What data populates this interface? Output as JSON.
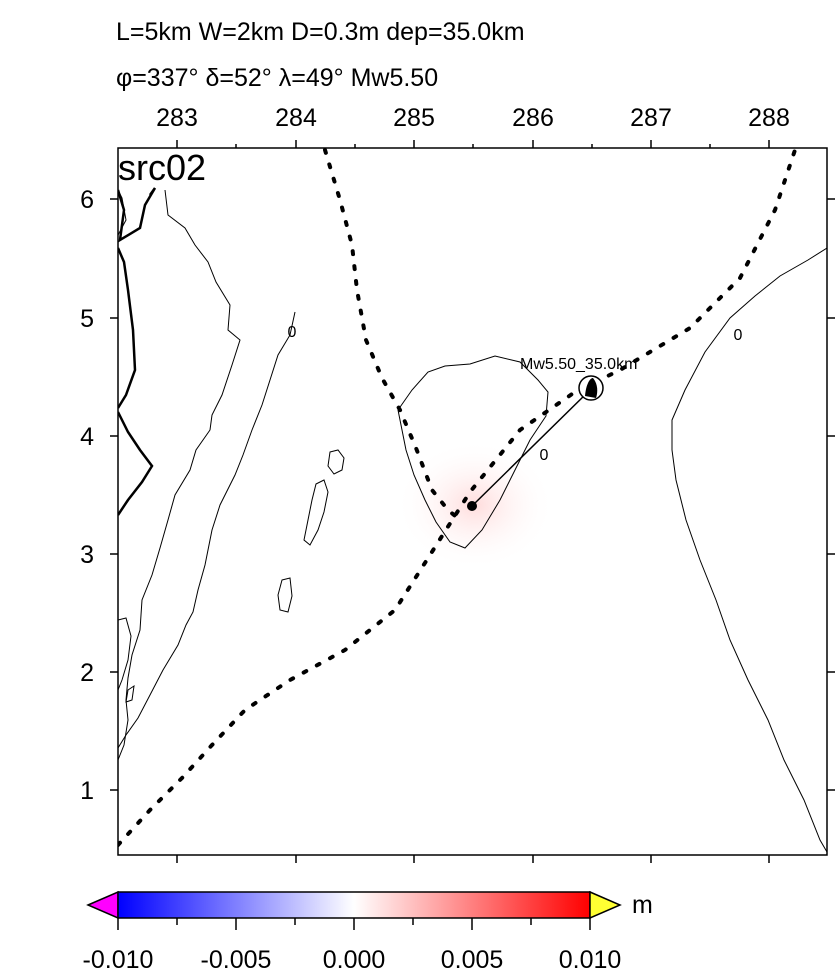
{
  "header": {
    "line1": "L=5km W=2km D=0.3m dep=35.0km",
    "line2": "φ=337° δ=52° λ=49° Mw5.50"
  },
  "map": {
    "panel_label": "src02",
    "x_ticks": [
      "283",
      "284",
      "285",
      "286",
      "287",
      "288"
    ],
    "y_ticks": [
      "1",
      "2",
      "3",
      "4",
      "5",
      "6"
    ],
    "contour_labels": [
      "0",
      "0",
      "0"
    ],
    "source_label": "Mw5.50_35.0km"
  },
  "colorbar": {
    "unit": "m",
    "ticks": [
      "-0.010",
      "-0.005",
      "0.000",
      "0.005",
      "0.010"
    ],
    "colors": {
      "min_end": "#ff00ff",
      "low": "#0000ff",
      "mid": "#ffffff",
      "high": "#ff0000",
      "max_end": "#ffff33"
    }
  }
}
